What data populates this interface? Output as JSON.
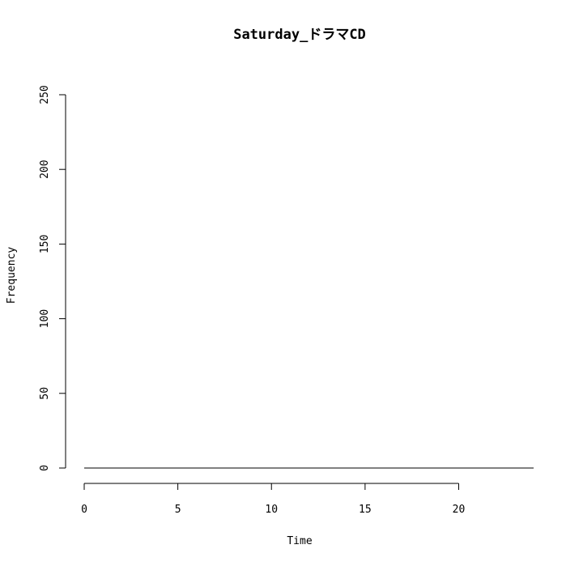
{
  "chart_data": {
    "type": "line",
    "title": "Saturday_ドラマCD",
    "xlabel": "Time",
    "ylabel": "Frequency",
    "xlim": [
      0,
      24
    ],
    "ylim": [
      0,
      250
    ],
    "x_ticks": [
      0,
      5,
      10,
      15,
      20
    ],
    "y_ticks": [
      0,
      50,
      100,
      150,
      200,
      250
    ],
    "grid": false,
    "legend": "none",
    "series": [
      {
        "x": [
          0,
          1,
          2,
          3,
          4,
          5,
          6,
          7,
          8,
          9,
          10,
          11,
          12,
          13,
          14,
          15,
          16,
          17,
          18,
          19,
          20,
          21,
          22,
          23,
          24
        ],
        "values": [
          0,
          0,
          0,
          0,
          0,
          0,
          0,
          0,
          0,
          0,
          0,
          0,
          0,
          0,
          0,
          0,
          0,
          0,
          0,
          0,
          0,
          0,
          0,
          0,
          0
        ],
        "color": "#000000"
      }
    ]
  }
}
